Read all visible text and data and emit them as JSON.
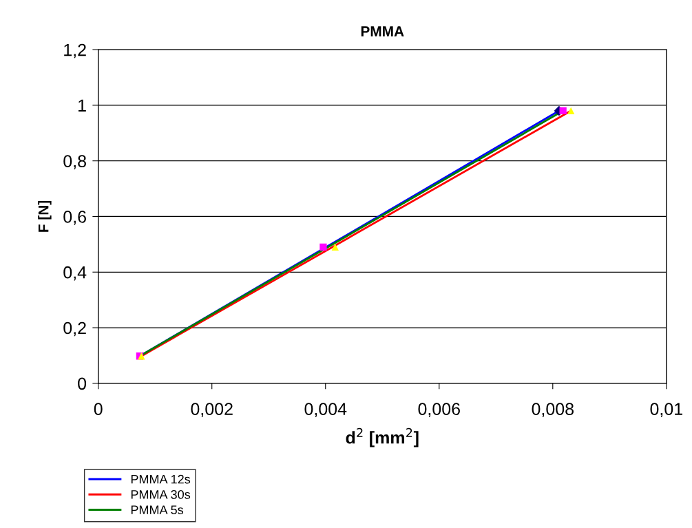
{
  "chart_data": {
    "type": "scatter",
    "title": "PMMA",
    "xlabel": "d$^{2}$ [mm$^{2}$]",
    "ylabel": "F [N]",
    "xlim": [
      0,
      0.01
    ],
    "xticks": [
      0,
      {
        "value": 0.002,
        "label": "0,002"
      },
      {
        "value": 0.004,
        "label": "0,004"
      },
      {
        "value": 0.006,
        "label": "0,006"
      },
      {
        "value": 0.008,
        "label": "0,008"
      },
      {
        "value": 0.01,
        "label": "0,01"
      }
    ],
    "ylim": [
      0,
      1.2
    ],
    "yticks": [
      0,
      {
        "value": 0.2,
        "label": "0,2"
      },
      {
        "value": 0.4,
        "label": "0,4"
      },
      {
        "value": 0.6,
        "label": "0,6"
      },
      {
        "value": 0.8,
        "label": "0,8"
      },
      1,
      {
        "value": 1.2,
        "label": "1,2"
      }
    ],
    "grid": "y",
    "legend": "bottom left",
    "series": [
      {
        "color": "#000080",
        "marker": "diamond",
        "x": [
          0.00811
        ],
        "values": [
          0.98
        ]
      },
      {
        "color": "#ff00ff",
        "marker": "square",
        "x": [
          0.00073,
          0.00396,
          0.00818
        ],
        "values": [
          0.098,
          0.49,
          0.98
        ]
      },
      {
        "color": "#ffff00",
        "marker": "triangle",
        "x": [
          0.00076,
          0.00417,
          0.00832
        ],
        "values": [
          0.098,
          0.49,
          0.98
        ]
      },
      {
        "type": "line",
        "name": "PMMA 12s",
        "color": "#0000ff",
        "marker": "none",
        "x": [
          0.00073,
          0.00811
        ],
        "values": [
          0.098,
          0.98
        ]
      },
      {
        "type": "line",
        "name": "PMMA 30s",
        "color": "#ff0000",
        "marker": "none",
        "x": [
          0.00076,
          0.00832
        ],
        "values": [
          0.098,
          0.98
        ]
      },
      {
        "type": "line",
        "name": "PMMA 5s",
        "color": "#008000",
        "marker": "none",
        "x": [
          0.00073,
          0.00818
        ],
        "values": [
          0.098,
          0.98
        ]
      }
    ]
  }
}
